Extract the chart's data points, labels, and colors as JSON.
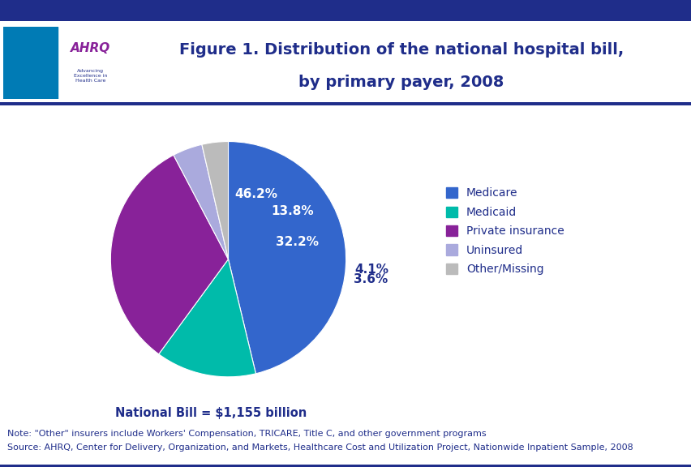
{
  "title_line1": "Figure 1. Distribution of the national hospital bill,",
  "title_line2": "by primary payer, 2008",
  "title_color": "#1F2D8A",
  "title_fontsize": 14,
  "labels": [
    "Medicare",
    "Medicaid",
    "Private insurance",
    "Uninsured",
    "Other/Missing"
  ],
  "values": [
    46.2,
    13.8,
    32.2,
    4.1,
    3.6
  ],
  "colors": [
    "#3366CC",
    "#00BBAA",
    "#882299",
    "#AAAADD",
    "#BBBBBB"
  ],
  "pct_labels": [
    "46.2%",
    "13.8%",
    "32.2%",
    "4.1%",
    "3.6%"
  ],
  "pct_colors_inside": [
    "white",
    "white",
    "white"
  ],
  "pct_colors_outside": [
    "#1F2D8A",
    "#1F2D8A"
  ],
  "national_bill_text": "National Bill = $1,155 billion",
  "national_bill_color": "#1F2D8A",
  "note_line1": "Note: \"Other\" insurers include Workers' Compensation, TRICARE, Title C, and other government programs",
  "note_line2": "Source: AHRQ, Center for Delivery, Organization, and Markets, Healthcare Cost and Utilization Project, Nationwide Inpatient Sample, 2008",
  "note_color": "#1F2D8A",
  "note_fontsize": 8,
  "legend_fontsize": 10,
  "background_color": "#FFFFFF",
  "header_bar_color": "#1F2D8A",
  "pct_fontsize": 11,
  "startangle": 90
}
